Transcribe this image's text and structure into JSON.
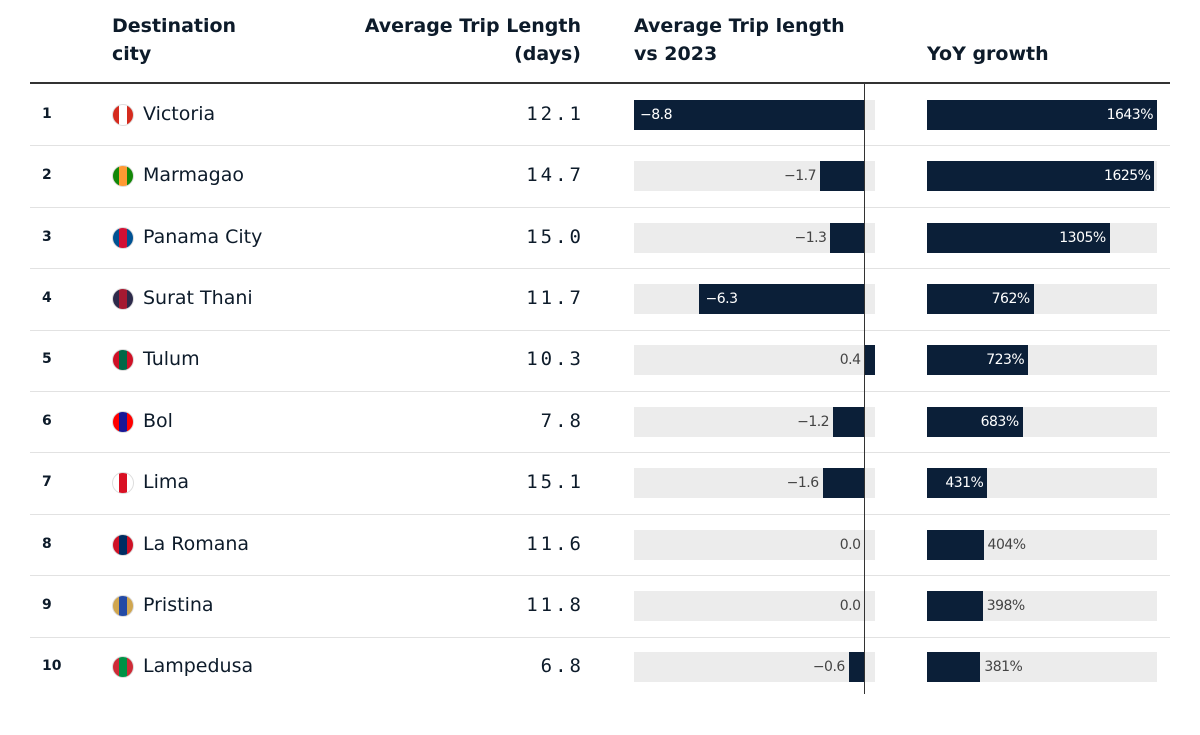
{
  "table": {
    "columns": {
      "destination": [
        "Destination",
        "city"
      ],
      "avg_trip_length": [
        "Average Trip Length",
        "(days)"
      ],
      "vs_2023": [
        "Average Trip length",
        "vs 2023"
      ],
      "yoy_growth": [
        "YoY growth"
      ]
    },
    "rows": [
      {
        "rank": "1",
        "city": "Victoria",
        "avg_trip_length": "12.1",
        "vs_2023": -8.8,
        "vs_2023_label": "−8.8",
        "yoy_growth": 1643,
        "yoy_growth_label": "1643%"
      },
      {
        "rank": "2",
        "city": "Marmagao",
        "avg_trip_length": "14.7",
        "vs_2023": -1.7,
        "vs_2023_label": "−1.7",
        "yoy_growth": 1625,
        "yoy_growth_label": "1625%"
      },
      {
        "rank": "3",
        "city": "Panama City",
        "avg_trip_length": "15.0",
        "vs_2023": -1.3,
        "vs_2023_label": "−1.3",
        "yoy_growth": 1305,
        "yoy_growth_label": "1305%"
      },
      {
        "rank": "4",
        "city": "Surat Thani",
        "avg_trip_length": "11.7",
        "vs_2023": -6.3,
        "vs_2023_label": "−6.3",
        "yoy_growth": 762,
        "yoy_growth_label": "762%"
      },
      {
        "rank": "5",
        "city": "Tulum",
        "avg_trip_length": "10.3",
        "vs_2023": 0.4,
        "vs_2023_label": "0.4",
        "yoy_growth": 723,
        "yoy_growth_label": "723%"
      },
      {
        "rank": "6",
        "city": "Bol",
        "avg_trip_length": "7.8",
        "vs_2023": -1.2,
        "vs_2023_label": "−1.2",
        "yoy_growth": 683,
        "yoy_growth_label": "683%"
      },
      {
        "rank": "7",
        "city": "Lima",
        "avg_trip_length": "15.1",
        "vs_2023": -1.6,
        "vs_2023_label": "−1.6",
        "yoy_growth": 431,
        "yoy_growth_label": "431%"
      },
      {
        "rank": "8",
        "city": "La Romana",
        "avg_trip_length": "11.6",
        "vs_2023": 0.0,
        "vs_2023_label": "0.0",
        "yoy_growth": 404,
        "yoy_growth_label": "404%"
      },
      {
        "rank": "9",
        "city": "Pristina",
        "avg_trip_length": "11.8",
        "vs_2023": 0.0,
        "vs_2023_label": "0.0",
        "yoy_growth": 398,
        "yoy_growth_label": "398%"
      },
      {
        "rank": "10",
        "city": "Lampedusa",
        "avg_trip_length": "6.8",
        "vs_2023": -0.6,
        "vs_2023_label": "−0.6",
        "yoy_growth": 381,
        "yoy_growth_label": "381%"
      }
    ]
  }
}
